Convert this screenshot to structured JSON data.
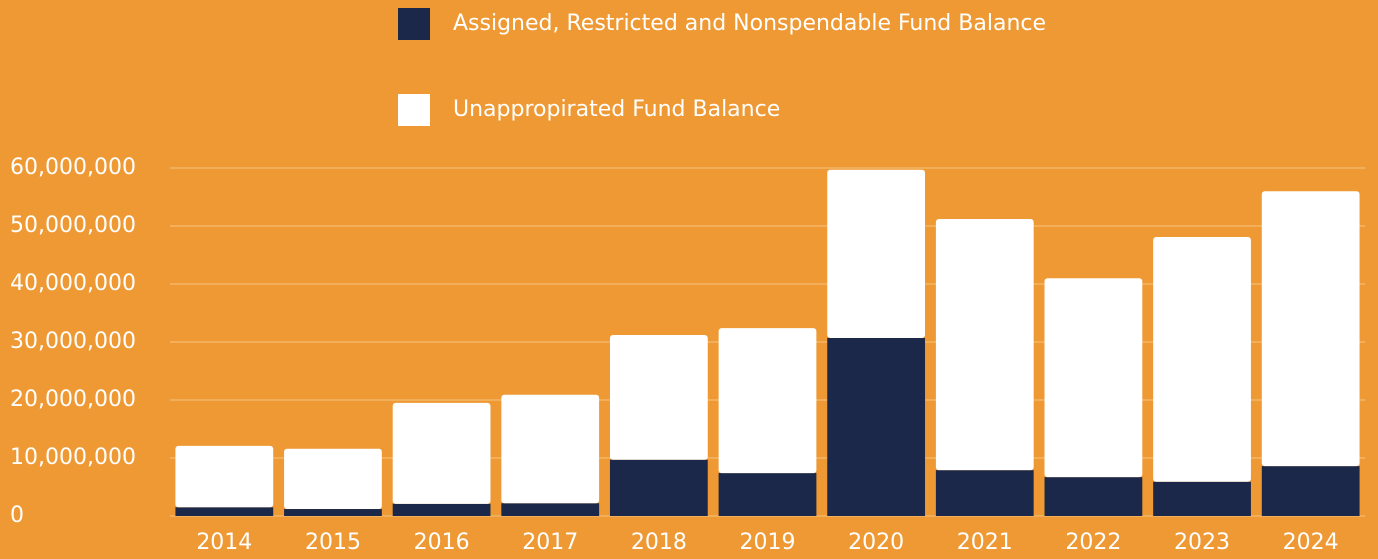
{
  "chart_data": {
    "type": "stacked_bar",
    "categories": [
      "2014",
      "2015",
      "2016",
      "2017",
      "2018",
      "2019",
      "2020",
      "2021",
      "2022",
      "2023",
      "2024"
    ],
    "series": [
      {
        "name": "Assigned, Restricted and Nonspendable Fund Balance",
        "color": "#1b2849",
        "values": [
          1500000,
          1200000,
          2100000,
          2200000,
          9700000,
          7400000,
          30700000,
          7900000,
          6700000,
          5900000,
          8600000
        ]
      },
      {
        "name": "Unappropirated Fund Balance",
        "color": "#ffffff",
        "values": [
          10600000,
          10400000,
          17400000,
          18700000,
          21500000,
          25000000,
          29000000,
          43300000,
          34300000,
          42200000,
          47400000
        ]
      }
    ],
    "ylim": [
      0,
      60000000
    ],
    "yticks": [
      0,
      {
        "value": 10000000,
        "label": "10,000,000"
      },
      {
        "value": 20000000,
        "label": "20,000,000"
      },
      {
        "value": 30000000,
        "label": "30,000,000"
      },
      {
        "value": 40000000,
        "label": "40,000,000"
      },
      {
        "value": 50000000,
        "label": "50,000,000"
      },
      {
        "value": 60000000,
        "label": "60,000,000"
      }
    ],
    "grid": true,
    "legend": "top"
  }
}
